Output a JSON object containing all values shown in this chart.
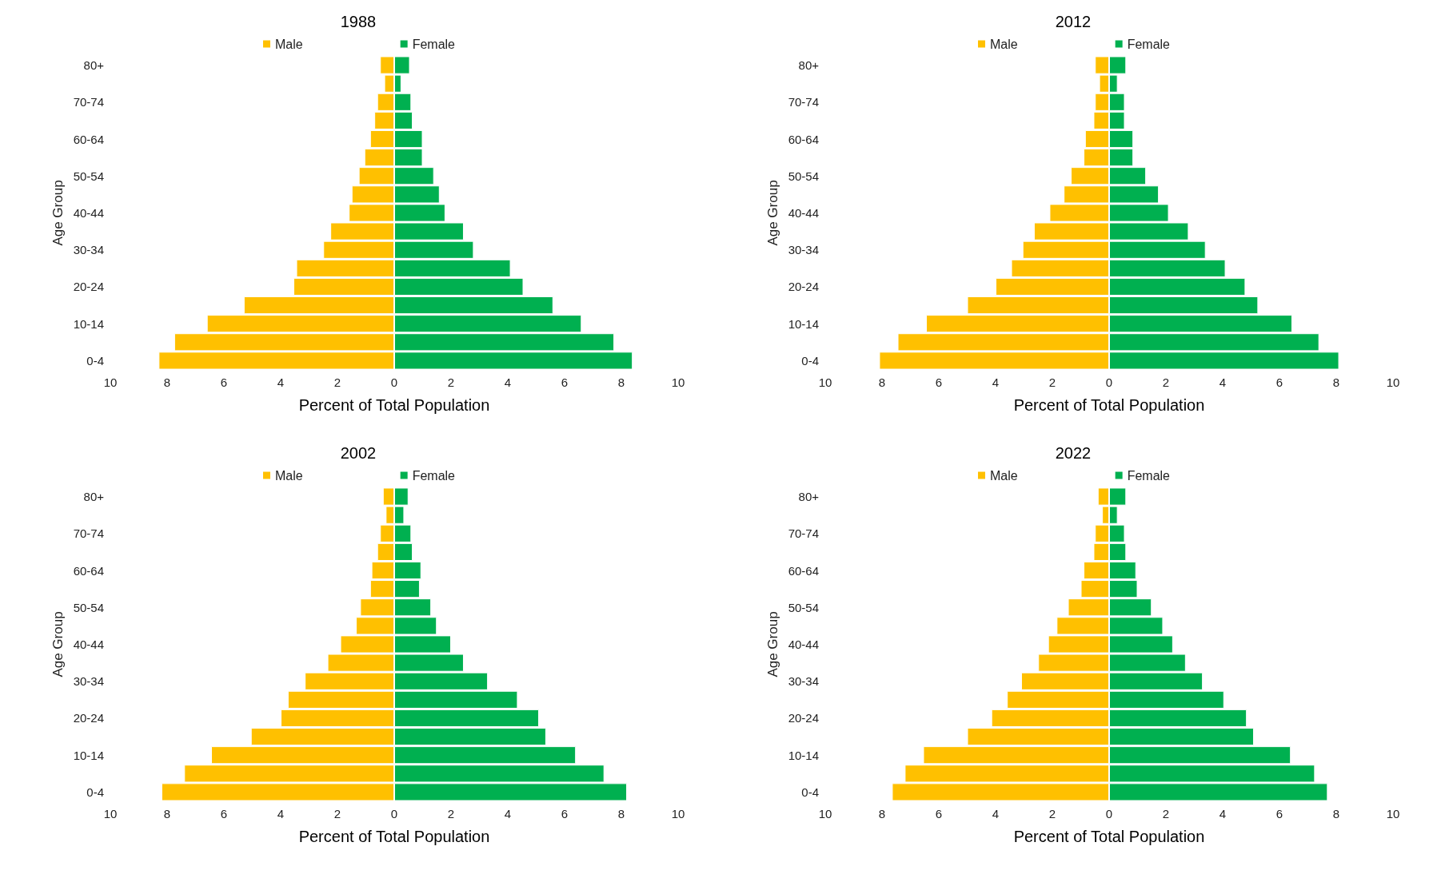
{
  "chart_data": [
    {
      "type": "bar",
      "title": "1988",
      "xlabel": "Percent of Total Population",
      "ylabel": "Age Group",
      "orientation": "horizontal",
      "stacked": true,
      "legend": "top",
      "grid": false,
      "categories": [
        "80+",
        null,
        "70-74",
        null,
        "60-64",
        null,
        "50-54",
        null,
        "40-44",
        null,
        "30-34",
        null,
        "20-24",
        null,
        "10-14",
        null,
        "0-4"
      ],
      "xlim": [
        -10,
        10
      ],
      "xticks": [
        {
          "value": -10,
          "label": "10"
        },
        {
          "value": -8,
          "label": "8"
        },
        {
          "value": -6,
          "label": "6"
        },
        {
          "value": -4,
          "label": "4"
        },
        {
          "value": -2,
          "label": "2"
        },
        0,
        2,
        4,
        6,
        8,
        10
      ],
      "series": [
        {
          "name": "Male",
          "color": "#ffc000",
          "values": [
            -0.5,
            -0.35,
            -0.6,
            -0.7,
            -0.85,
            -1.05,
            -1.25,
            -1.5,
            -1.6,
            -2.25,
            -2.5,
            -3.45,
            -3.55,
            -5.3,
            -6.6,
            -7.75,
            -8.3
          ]
        },
        {
          "name": "Female",
          "color": "#00b050",
          "values": [
            0.55,
            0.25,
            0.6,
            0.65,
            1.0,
            1.0,
            1.4,
            1.6,
            1.8,
            2.45,
            2.8,
            4.1,
            4.55,
            5.6,
            6.6,
            7.75,
            8.4
          ]
        }
      ]
    },
    {
      "type": "bar",
      "title": "2012",
      "xlabel": "Percent of Total Population",
      "ylabel": "Age Group",
      "orientation": "horizontal",
      "stacked": true,
      "legend": "top",
      "grid": false,
      "categories": [
        "80+",
        null,
        "70-74",
        null,
        "60-64",
        null,
        "50-54",
        null,
        "40-44",
        null,
        "30-34",
        null,
        "20-24",
        null,
        "10-14",
        null,
        "0-4"
      ],
      "xlim": [
        -10,
        10
      ],
      "xticks": [
        {
          "value": -10,
          "label": "10"
        },
        {
          "value": -8,
          "label": "8"
        },
        {
          "value": -6,
          "label": "6"
        },
        {
          "value": -4,
          "label": "4"
        },
        {
          "value": -2,
          "label": "2"
        },
        0,
        2,
        4,
        6,
        8,
        10
      ],
      "series": [
        {
          "name": "Male",
          "color": "#ffc000",
          "values": [
            -0.5,
            -0.35,
            -0.5,
            -0.55,
            -0.85,
            -0.9,
            -1.35,
            -1.6,
            -2.1,
            -2.65,
            -3.05,
            -3.45,
            -4.0,
            -5.0,
            -6.45,
            -7.45,
            -8.1
          ]
        },
        {
          "name": "Female",
          "color": "#00b050",
          "values": [
            0.6,
            0.3,
            0.55,
            0.55,
            0.85,
            0.85,
            1.3,
            1.75,
            2.1,
            2.8,
            3.4,
            4.1,
            4.8,
            5.25,
            6.45,
            7.4,
            8.1
          ]
        }
      ]
    },
    {
      "type": "bar",
      "title": "2002",
      "xlabel": "Percent of Total Population",
      "ylabel": "Age Group",
      "orientation": "horizontal",
      "stacked": true,
      "legend": "top",
      "grid": false,
      "categories": [
        "80+",
        null,
        "70-74",
        null,
        "60-64",
        null,
        "50-54",
        null,
        "40-44",
        null,
        "30-34",
        null,
        "20-24",
        null,
        "10-14",
        null,
        "0-4"
      ],
      "xlim": [
        -10,
        10
      ],
      "xticks": [
        {
          "value": -10,
          "label": "10"
        },
        {
          "value": -8,
          "label": "8"
        },
        {
          "value": -6,
          "label": "6"
        },
        {
          "value": -4,
          "label": "4"
        },
        {
          "value": -2,
          "label": "2"
        },
        0,
        2,
        4,
        6,
        8,
        10
      ],
      "series": [
        {
          "name": "Male",
          "color": "#ffc000",
          "values": [
            -0.4,
            -0.3,
            -0.5,
            -0.6,
            -0.8,
            -0.85,
            -1.2,
            -1.35,
            -1.9,
            -2.35,
            -3.15,
            -3.75,
            -4.0,
            -5.05,
            -6.45,
            -7.4,
            -8.2
          ]
        },
        {
          "name": "Female",
          "color": "#00b050",
          "values": [
            0.5,
            0.35,
            0.6,
            0.65,
            0.95,
            0.9,
            1.3,
            1.5,
            2.0,
            2.45,
            3.3,
            4.35,
            5.1,
            5.35,
            6.4,
            7.4,
            8.2
          ]
        }
      ]
    },
    {
      "type": "bar",
      "title": "2022",
      "xlabel": "Percent of Total Population",
      "ylabel": "Age Group",
      "orientation": "horizontal",
      "stacked": true,
      "legend": "top",
      "grid": false,
      "categories": [
        "80+",
        null,
        "70-74",
        null,
        "60-64",
        null,
        "50-54",
        null,
        "40-44",
        null,
        "30-34",
        null,
        "20-24",
        null,
        "10-14",
        null,
        "0-4"
      ],
      "xlim": [
        -10,
        10
      ],
      "xticks": [
        {
          "value": -10,
          "label": "10"
        },
        {
          "value": -8,
          "label": "8"
        },
        {
          "value": -6,
          "label": "6"
        },
        {
          "value": -4,
          "label": "4"
        },
        {
          "value": -2,
          "label": "2"
        },
        0,
        2,
        4,
        6,
        8,
        10
      ],
      "series": [
        {
          "name": "Male",
          "color": "#ffc000",
          "values": [
            -0.4,
            -0.25,
            -0.5,
            -0.55,
            -0.9,
            -1.0,
            -1.45,
            -1.85,
            -2.15,
            -2.5,
            -3.1,
            -3.6,
            -4.15,
            -5.0,
            -6.55,
            -7.2,
            -7.65
          ]
        },
        {
          "name": "Female",
          "color": "#00b050",
          "values": [
            0.6,
            0.3,
            0.55,
            0.6,
            0.95,
            1.0,
            1.5,
            1.9,
            2.25,
            2.7,
            3.3,
            4.05,
            4.85,
            5.1,
            6.4,
            7.25,
            7.7
          ]
        }
      ]
    }
  ]
}
